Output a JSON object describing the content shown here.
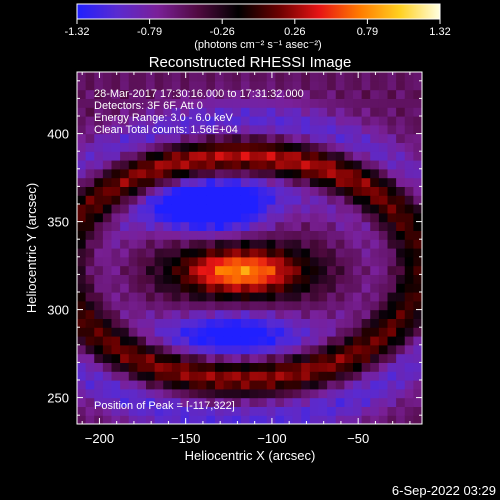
{
  "chart_data": {
    "type": "heatmap",
    "title": "Reconstructed RHESSI Image",
    "xlabel": "Heliocentric X (arcsec)",
    "ylabel": "Heliocentric Y (arcsec)",
    "xlim": [
      -213,
      -13
    ],
    "ylim": [
      235,
      435
    ],
    "x_ticks": [
      -200,
      -150,
      -100,
      -50
    ],
    "y_ticks": [
      250,
      300,
      350,
      400
    ],
    "colorbar": {
      "range": [
        -1.32,
        1.32
      ],
      "ticks": [
        "-1.32",
        "-0.79",
        "-0.26",
        "0.26",
        "0.79",
        "1.32"
      ],
      "units_label": "(photons cm⁻² s⁻¹ asec⁻²)",
      "stops": [
        "#2020ff",
        "#5a2ad0",
        "#7a2098",
        "#500a40",
        "#000000",
        "#6a0000",
        "#e61414",
        "#ff7a00",
        "#ffd020",
        "#ffffe0"
      ]
    },
    "info_lines": [
      "28-Mar-2017 17:30:16.000 to 17:31:32.000",
      "Detectors: 3F 6F, Att 0",
      "Energy Range: 3.0 - 6.0 keV",
      "Clean     Total counts: 1.56E+04"
    ],
    "peak_label": "Position of Peak = [-117,322]",
    "peak": [
      -117,
      322
    ],
    "features": [
      {
        "kind": "blob",
        "center": [
          -118,
          322
        ],
        "sigma": [
          27,
          10
        ],
        "amplitude": 1.35
      },
      {
        "kind": "blob",
        "center": [
          -135,
          358
        ],
        "sigma": [
          23,
          10
        ],
        "amplitude": -1.25
      },
      {
        "kind": "blob",
        "center": [
          -122,
          287
        ],
        "sigma": [
          28,
          9
        ],
        "amplitude": -0.85
      },
      {
        "kind": "arc",
        "center": [
          -118,
          325
        ],
        "radius": [
          105,
          62
        ],
        "width": 8,
        "amplitude": 1.0
      },
      {
        "kind": "arc",
        "center": [
          -118,
          322
        ],
        "radius": [
          120,
          85
        ],
        "width": 9,
        "amplitude": -0.5
      },
      {
        "kind": "arc",
        "center": [
          -118,
          322
        ],
        "radius": [
          90,
          50
        ],
        "width": 8,
        "amplitude": -0.4
      }
    ]
  },
  "footer_date": "6-Sep-2022 03:29"
}
